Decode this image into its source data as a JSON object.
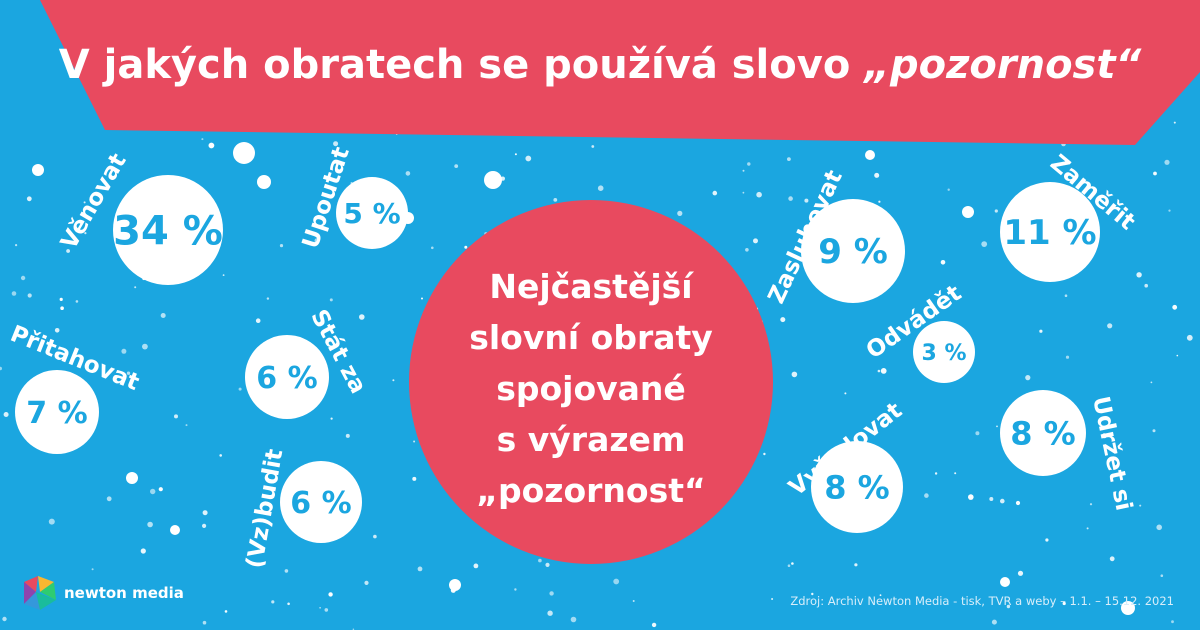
{
  "title": {
    "prefix": "V jakých obratech se používá slovo",
    "emphasis": "„pozornost“"
  },
  "center_circle": {
    "lines": [
      "Nejčastější",
      "slovní obraty",
      "spojované",
      "s výrazem",
      "„pozornost“"
    ]
  },
  "chart_data": {
    "type": "bubble",
    "unit": "%",
    "items": [
      {
        "label": "Věnovat",
        "value": 34,
        "display": "34 %"
      },
      {
        "label": "Upoutat",
        "value": 5,
        "display": "5 %"
      },
      {
        "label": "Přitahovat",
        "value": 7,
        "display": "7 %"
      },
      {
        "label": "Stát za",
        "value": 6,
        "display": "6 %"
      },
      {
        "label": "(Vz)budit",
        "value": 6,
        "display": "6 %"
      },
      {
        "label": "Zasluhovat",
        "value": 9,
        "display": "9 %"
      },
      {
        "label": "Zaměřit",
        "value": 11,
        "display": "11 %"
      },
      {
        "label": "Odvádět",
        "value": 3,
        "display": "3 %"
      },
      {
        "label": "Udržet si",
        "value": 8,
        "display": "8 %"
      },
      {
        "label": "Vyžadovat",
        "value": 8,
        "display": "8 %"
      }
    ]
  },
  "footer": {
    "logo_text": "newton media",
    "source": "Zdroj: Archiv Newton Media - tisk, TVR a weby  –  1.1. – 15.12. 2021"
  },
  "colors": {
    "background": "#1ba6e0",
    "accent": "#e84a5f",
    "bubble": "#ffffff",
    "value_text": "#1ba6e0",
    "label_text": "#ffffff"
  }
}
